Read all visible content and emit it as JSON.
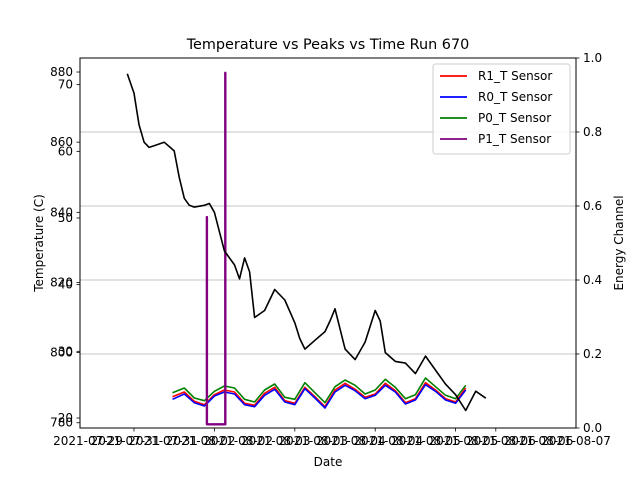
{
  "chart_data": {
    "type": "line",
    "title": "Temperature vs Peaks vs Time Run 670",
    "xlabel": "Date",
    "ylabel_left": "Temperature (C)",
    "ylabel_right": "Energy Channel",
    "grid": "horizontal lines at right-axis ticks",
    "legend_position": "upper right",
    "x_range": [
      "2021-07-27",
      "2021-08-09"
    ],
    "x_ticks": [
      "2021-07-29",
      "2021-07-31",
      "2021-08-02",
      "2021-08-04",
      "2021-08-06",
      "2021-08-07"
    ],
    "x_tick_labels_displayed": [
      "2021-07-29",
      "2021-07-31",
      "2021-07-31",
      "2021-08-02",
      "2021-08-02",
      "2021-08-03",
      "2021-08-03",
      "2021-08-04",
      "2021-08-04",
      "2021-08-05",
      "2021-08-05",
      "2021-08-06",
      "2021-08-06",
      "2021-08-07"
    ],
    "axes": {
      "temperature_inner": {
        "ticks": [
          20,
          30,
          40,
          50,
          60,
          70
        ],
        "range": [
          18.5,
          74.0
        ]
      },
      "temperature_outer": {
        "ticks": [
          780,
          800,
          820,
          840,
          860,
          880
        ],
        "range": [
          778.5,
          884.0
        ]
      },
      "energy_channel": {
        "ticks": [
          0.0,
          0.2,
          0.4,
          0.6,
          0.8,
          1.0
        ],
        "range": [
          0.0,
          1.0
        ]
      }
    },
    "series": [
      {
        "name": "R1_T Sensor",
        "color": "#ff0000",
        "axis": "temperature_inner",
        "x": [
          "2021-07-29T23:00",
          "2021-07-30T06:00",
          "2021-07-30T12:00",
          "2021-07-30T18:00",
          "2021-07-31T00:00",
          "2021-07-31T06:00",
          "2021-07-31T12:00",
          "2021-07-31T18:00",
          "2021-08-01T00:00",
          "2021-08-01T06:00",
          "2021-08-01T12:00",
          "2021-08-01T18:00",
          "2021-08-02T00:00",
          "2021-08-02T06:00",
          "2021-08-02T12:00",
          "2021-08-02T18:00",
          "2021-08-03T00:00",
          "2021-08-03T06:00",
          "2021-08-03T12:00",
          "2021-08-03T18:00",
          "2021-08-04T00:00",
          "2021-08-04T06:00",
          "2021-08-04T12:00",
          "2021-08-04T18:00",
          "2021-08-05T00:00",
          "2021-08-05T06:00",
          "2021-08-05T12:00",
          "2021-08-05T18:00",
          "2021-08-06T00:00",
          "2021-08-06T06:00"
        ],
        "y": [
          23.2,
          23.9,
          22.5,
          22.0,
          23.5,
          24.2,
          23.9,
          22.2,
          21.9,
          23.7,
          24.6,
          22.6,
          22.2,
          24.6,
          23.2,
          21.7,
          24.2,
          25.2,
          24.3,
          23.1,
          23.6,
          25.2,
          24.1,
          22.3,
          22.9,
          25.3,
          24.2,
          22.9,
          22.4,
          24.5
        ]
      },
      {
        "name": "R0_T Sensor",
        "color": "#0000ff",
        "axis": "temperature_inner",
        "x": [
          "2021-07-29T23:00",
          "2021-07-30T06:00",
          "2021-07-30T12:00",
          "2021-07-30T18:00",
          "2021-07-31T00:00",
          "2021-07-31T06:00",
          "2021-07-31T12:00",
          "2021-07-31T18:00",
          "2021-08-01T00:00",
          "2021-08-01T06:00",
          "2021-08-01T12:00",
          "2021-08-01T18:00",
          "2021-08-02T00:00",
          "2021-08-02T06:00",
          "2021-08-02T12:00",
          "2021-08-02T18:00",
          "2021-08-03T00:00",
          "2021-08-03T06:00",
          "2021-08-03T12:00",
          "2021-08-03T18:00",
          "2021-08-04T00:00",
          "2021-08-04T06:00",
          "2021-08-04T12:00",
          "2021-08-04T18:00",
          "2021-08-05T00:00",
          "2021-08-05T06:00",
          "2021-08-05T12:00",
          "2021-08-05T18:00",
          "2021-08-06T00:00",
          "2021-08-06T06:00"
        ],
        "y": [
          22.8,
          23.6,
          22.3,
          21.8,
          23.3,
          23.9,
          23.6,
          22.0,
          21.7,
          23.4,
          24.3,
          22.4,
          22.0,
          24.4,
          23.0,
          21.5,
          23.9,
          24.9,
          24.1,
          22.9,
          23.4,
          24.9,
          23.9,
          22.1,
          22.7,
          25.0,
          24.0,
          22.7,
          22.2,
          24.2
        ]
      },
      {
        "name": "P0_T Sensor",
        "color": "#008000",
        "axis": "temperature_inner",
        "x": [
          "2021-07-29T23:00",
          "2021-07-30T06:00",
          "2021-07-30T12:00",
          "2021-07-30T18:00",
          "2021-07-31T00:00",
          "2021-07-31T06:00",
          "2021-07-31T12:00",
          "2021-07-31T18:00",
          "2021-08-01T00:00",
          "2021-08-01T06:00",
          "2021-08-01T12:00",
          "2021-08-01T18:00",
          "2021-08-02T00:00",
          "2021-08-02T06:00",
          "2021-08-02T12:00",
          "2021-08-02T18:00",
          "2021-08-03T00:00",
          "2021-08-03T06:00",
          "2021-08-03T12:00",
          "2021-08-03T18:00",
          "2021-08-04T00:00",
          "2021-08-04T06:00",
          "2021-08-04T12:00",
          "2021-08-04T18:00",
          "2021-08-05T00:00",
          "2021-08-05T06:00",
          "2021-08-05T12:00",
          "2021-08-05T18:00",
          "2021-08-06T00:00",
          "2021-08-06T06:00"
        ],
        "y": [
          23.8,
          24.5,
          23.0,
          22.6,
          24.0,
          24.8,
          24.5,
          22.8,
          22.4,
          24.2,
          25.1,
          23.1,
          22.8,
          25.3,
          23.8,
          22.3,
          24.7,
          25.7,
          24.9,
          23.6,
          24.2,
          25.8,
          24.6,
          22.9,
          23.5,
          26.0,
          24.7,
          23.4,
          22.9,
          24.9
        ]
      },
      {
        "name": "P1_T Sensor",
        "color": "#800080",
        "axis": "energy_channel",
        "x": [
          "2021-07-30T19:30",
          "2021-07-30T19:30",
          "2021-07-30T19:30",
          "2021-07-31T06:30",
          "2021-07-31T06:30",
          "2021-07-31T06:30"
        ],
        "y": [
          0.01,
          0.57,
          0.01,
          0.01,
          0.96,
          0.01
        ]
      },
      {
        "name": "",
        "color": "#000000",
        "axis": "temperature_outer",
        "x": [
          "2021-07-28T20:00",
          "2021-07-29T00:00",
          "2021-07-29T03:00",
          "2021-07-29T06:00",
          "2021-07-29T09:00",
          "2021-07-29T12:00",
          "2021-07-29T18:00",
          "2021-07-30T00:00",
          "2021-07-30T03:00",
          "2021-07-30T06:00",
          "2021-07-30T09:00",
          "2021-07-30T12:00",
          "2021-07-30T18:00",
          "2021-07-30T21:00",
          "2021-07-31T00:00",
          "2021-07-31T06:00",
          "2021-07-31T12:00",
          "2021-07-31T15:00",
          "2021-07-31T18:00",
          "2021-07-31T21:00",
          "2021-08-01T00:00",
          "2021-08-01T06:00",
          "2021-08-01T12:00",
          "2021-08-01T18:00",
          "2021-08-02T00:00",
          "2021-08-02T03:00",
          "2021-08-02T06:00",
          "2021-08-02T12:00",
          "2021-08-02T18:00",
          "2021-08-02T21:00",
          "2021-08-03T00:00",
          "2021-08-03T06:00",
          "2021-08-03T12:00",
          "2021-08-03T18:00",
          "2021-08-04T00:00",
          "2021-08-04T03:00",
          "2021-08-04T06:00",
          "2021-08-04T12:00",
          "2021-08-04T18:00",
          "2021-08-05T00:00",
          "2021-08-05T06:00",
          "2021-08-05T12:00",
          "2021-08-05T18:00",
          "2021-08-06T00:00",
          "2021-08-06T06:00",
          "2021-08-06T12:00",
          "2021-08-06T18:00"
        ],
        "y": [
          879.5,
          874.0,
          865.0,
          860.0,
          858.5,
          859.0,
          860.0,
          857.5,
          850.0,
          844.0,
          842.0,
          841.5,
          842.0,
          842.5,
          840.0,
          829.0,
          825.0,
          821.0,
          827.0,
          823.0,
          810.0,
          812.0,
          818.0,
          815.0,
          808.5,
          804.0,
          801.0,
          803.5,
          806.0,
          809.0,
          812.5,
          801.0,
          798.0,
          803.0,
          812.0,
          809.0,
          800.0,
          797.5,
          797.0,
          794.0,
          799.0,
          795.0,
          791.0,
          788.0,
          783.5,
          789.0,
          787.0
        ]
      }
    ]
  }
}
